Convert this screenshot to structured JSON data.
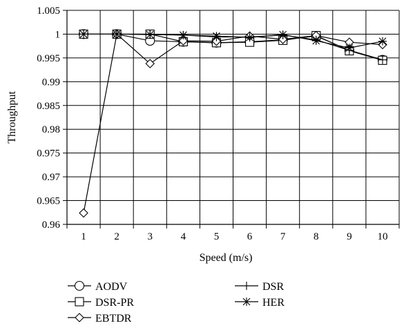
{
  "chart_data": {
    "type": "line",
    "title": "",
    "xlabel": "Speed (m/s)",
    "ylabel": "Throughput",
    "categories": [
      1,
      2,
      3,
      4,
      5,
      6,
      7,
      8,
      9,
      10
    ],
    "ylim": [
      0.96,
      1.005
    ],
    "yticks": [
      "0.96",
      "0.965",
      "0.97",
      "0.975",
      "0.98",
      "0.985",
      "0.99",
      "0.995",
      "1",
      "1.005"
    ],
    "xticks": [
      "1",
      "2",
      "3",
      "4",
      "5",
      "6",
      "7",
      "8",
      "9",
      "10"
    ],
    "grid": true,
    "legend_position": "bottom",
    "series": [
      {
        "name": "AODV",
        "marker": "circle",
        "values": [
          1.0,
          1.0,
          0.9986,
          0.9984,
          0.9982,
          0.9984,
          0.9988,
          0.9996,
          0.9966,
          0.9946
        ]
      },
      {
        "name": "DSR-PR",
        "marker": "square",
        "values": [
          1.0,
          1.0,
          1.0,
          0.9984,
          0.9982,
          0.9983,
          0.9987,
          0.9997,
          0.9965,
          0.9945
        ]
      },
      {
        "name": "EBTDR",
        "marker": "diamond",
        "values": [
          0.9624,
          1.0,
          0.9938,
          0.9986,
          0.9985,
          0.9996,
          0.9989,
          0.9997,
          0.9983,
          0.9978
        ]
      },
      {
        "name": "DSR",
        "marker": "plus",
        "values": [
          1.0,
          1.0,
          1.0,
          0.9998,
          0.9994,
          0.9994,
          0.9998,
          0.9988,
          0.9966,
          0.9946
        ]
      },
      {
        "name": "HER",
        "marker": "star",
        "values": [
          1.0,
          1.0,
          0.9999,
          0.9998,
          0.9996,
          0.9993,
          0.9999,
          0.9986,
          0.9971,
          0.9985
        ]
      }
    ]
  }
}
